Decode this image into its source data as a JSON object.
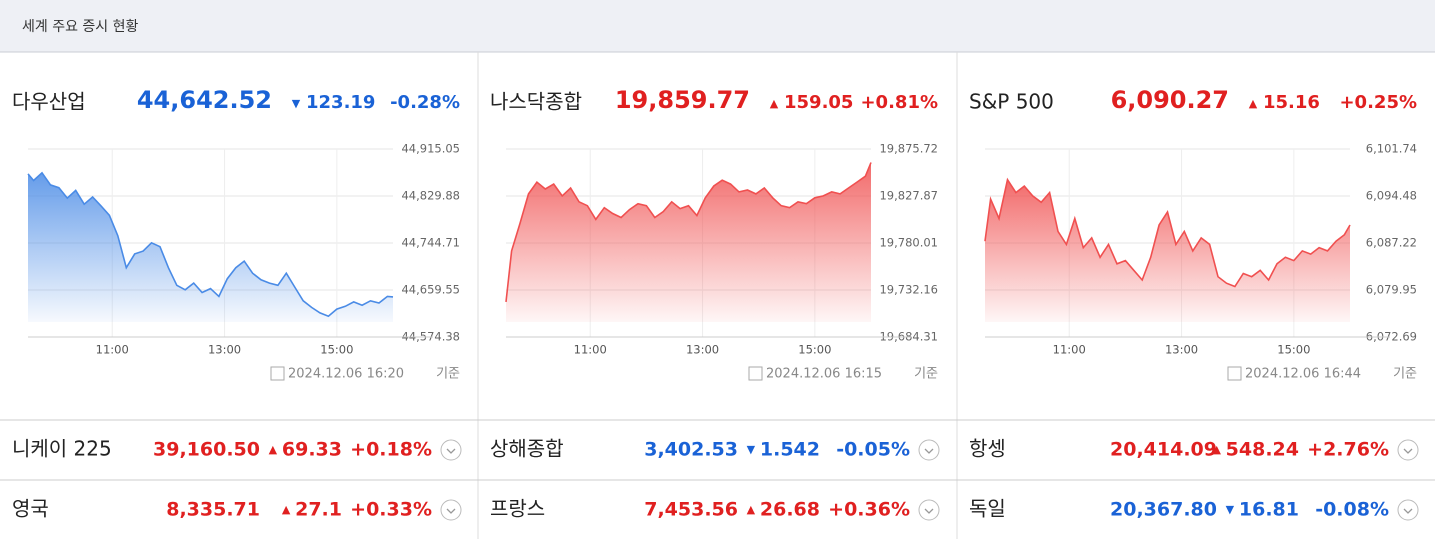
{
  "header": {
    "title": "세계 주요 증시 현황"
  },
  "chart_data": [
    {
      "type": "area",
      "name": "다우산업",
      "price": "44,642.52",
      "change": "123.19",
      "change_pct": "-0.28%",
      "direction": "down",
      "color": "#1a62d6",
      "fill": "#4a8be6",
      "timestamp": "2024.12.06 16:20",
      "timestamp_suffix": "기준",
      "x": [
        9.5,
        9.6,
        9.75,
        9.9,
        10.05,
        10.2,
        10.35,
        10.5,
        10.65,
        10.8,
        10.95,
        11.1,
        11.25,
        11.4,
        11.55,
        11.7,
        11.85,
        12.0,
        12.15,
        12.3,
        12.45,
        12.6,
        12.75,
        12.9,
        13.05,
        13.2,
        13.35,
        13.5,
        13.65,
        13.8,
        13.95,
        14.1,
        14.25,
        14.4,
        14.55,
        14.7,
        14.85,
        15.0,
        15.15,
        15.3,
        15.45,
        15.6,
        15.75,
        15.9,
        16.0
      ],
      "values": [
        44870,
        44858,
        44872,
        44850,
        44845,
        44826,
        44840,
        44815,
        44828,
        44812,
        44795,
        44758,
        44700,
        44725,
        44730,
        44745,
        44738,
        44700,
        44668,
        44660,
        44672,
        44655,
        44662,
        44648,
        44680,
        44700,
        44712,
        44690,
        44678,
        44672,
        44668,
        44690,
        44665,
        44640,
        44628,
        44618,
        44612,
        44625,
        44630,
        44638,
        44632,
        44640,
        44636,
        44648,
        44647
      ],
      "xlim": [
        9.5,
        16
      ],
      "ylim": [
        44574.38,
        44915.05
      ],
      "xticks": [
        {
          "value": 11,
          "label": "11:00"
        },
        {
          "value": 13,
          "label": "13:00"
        },
        {
          "value": 15,
          "label": "15:00"
        }
      ],
      "yticks": [
        {
          "value": 44574.38,
          "label": "44,574.38"
        },
        {
          "value": 44659.55,
          "label": "44,659.55"
        },
        {
          "value": 44744.71,
          "label": "44,744.71"
        },
        {
          "value": 44829.88,
          "label": "44,829.88"
        },
        {
          "value": 44915.05,
          "label": "44,915.05"
        }
      ]
    },
    {
      "type": "area",
      "name": "나스닥종합",
      "price": "19,859.77",
      "change": "159.05",
      "change_pct": "+0.81%",
      "direction": "up",
      "color": "#e02020",
      "fill": "#f05050",
      "timestamp": "2024.12.06 16:15",
      "timestamp_suffix": "기준",
      "x": [
        9.5,
        9.6,
        9.75,
        9.9,
        10.05,
        10.2,
        10.35,
        10.5,
        10.65,
        10.8,
        10.95,
        11.1,
        11.25,
        11.4,
        11.55,
        11.7,
        11.85,
        12.0,
        12.15,
        12.3,
        12.45,
        12.6,
        12.75,
        12.9,
        13.05,
        13.2,
        13.35,
        13.5,
        13.65,
        13.8,
        13.95,
        14.1,
        14.25,
        14.4,
        14.55,
        14.7,
        14.85,
        15.0,
        15.15,
        15.3,
        15.45,
        15.6,
        15.75,
        15.9,
        16.0
      ],
      "values": [
        19720,
        19772,
        19800,
        19830,
        19842,
        19835,
        19840,
        19828,
        19836,
        19822,
        19818,
        19804,
        19816,
        19810,
        19806,
        19814,
        19820,
        19818,
        19806,
        19812,
        19822,
        19815,
        19818,
        19808,
        19826,
        19838,
        19844,
        19840,
        19832,
        19834,
        19830,
        19836,
        19826,
        19818,
        19816,
        19822,
        19820,
        19826,
        19828,
        19832,
        19830,
        19836,
        19842,
        19848,
        19862
      ],
      "xlim": [
        9.5,
        16
      ],
      "ylim": [
        19684.31,
        19875.72
      ],
      "xticks": [
        {
          "value": 11,
          "label": "11:00"
        },
        {
          "value": 13,
          "label": "13:00"
        },
        {
          "value": 15,
          "label": "15:00"
        }
      ],
      "yticks": [
        {
          "value": 19684.31,
          "label": "19,684.31"
        },
        {
          "value": 19732.16,
          "label": "19,732.16"
        },
        {
          "value": 19780.01,
          "label": "19,780.01"
        },
        {
          "value": 19827.87,
          "label": "19,827.87"
        },
        {
          "value": 19875.72,
          "label": "19,875.72"
        }
      ]
    },
    {
      "type": "area",
      "name": "S&P 500",
      "price": "6,090.27",
      "change": "15.16",
      "change_pct": "+0.25%",
      "direction": "up",
      "color": "#e02020",
      "fill": "#f05050",
      "timestamp": "2024.12.06 16:44",
      "timestamp_suffix": "기준",
      "x": [
        9.5,
        9.6,
        9.75,
        9.9,
        10.05,
        10.2,
        10.35,
        10.5,
        10.65,
        10.8,
        10.95,
        11.1,
        11.25,
        11.4,
        11.55,
        11.7,
        11.85,
        12.0,
        12.15,
        12.3,
        12.45,
        12.6,
        12.75,
        12.9,
        13.05,
        13.2,
        13.35,
        13.5,
        13.65,
        13.8,
        13.95,
        14.1,
        14.25,
        14.4,
        14.55,
        14.7,
        14.85,
        15.0,
        15.15,
        15.3,
        15.45,
        15.6,
        15.75,
        15.9,
        16.0
      ],
      "values": [
        6087.5,
        6094,
        6091,
        6097,
        6095,
        6096,
        6094.5,
        6093.5,
        6095,
        6089,
        6087,
        6091,
        6086.5,
        6088,
        6085,
        6087,
        6084,
        6084.5,
        6083,
        6081.5,
        6085,
        6090,
        6092,
        6087,
        6089,
        6086,
        6088,
        6087,
        6082,
        6081,
        6080.5,
        6082.5,
        6082,
        6083,
        6081.5,
        6084,
        6085,
        6084.5,
        6086,
        6085.5,
        6086.5,
        6086,
        6087.5,
        6088.5,
        6090
      ],
      "xlim": [
        9.5,
        16
      ],
      "ylim": [
        6072.69,
        6101.74
      ],
      "xticks": [
        {
          "value": 11,
          "label": "11:00"
        },
        {
          "value": 13,
          "label": "13:00"
        },
        {
          "value": 15,
          "label": "15:00"
        }
      ],
      "yticks": [
        {
          "value": 6072.69,
          "label": "6,072.69"
        },
        {
          "value": 6079.95,
          "label": "6,079.95"
        },
        {
          "value": 6087.22,
          "label": "6,087.22"
        },
        {
          "value": 6094.48,
          "label": "6,094.48"
        },
        {
          "value": 6101.74,
          "label": "6,101.74"
        }
      ]
    }
  ],
  "markets": [
    {
      "name": "니케이 225",
      "price": "39,160.50",
      "change": "69.33",
      "change_pct": "+0.18%",
      "direction": "up",
      "color": "#e02020"
    },
    {
      "name": "상해종합",
      "price": "3,402.53",
      "change": "1.542",
      "change_pct": "-0.05%",
      "direction": "down",
      "color": "#1a62d6"
    },
    {
      "name": "항셍",
      "price": "20,414.09",
      "change": "548.24",
      "change_pct": "+2.76%",
      "direction": "up",
      "color": "#e02020"
    },
    {
      "name": "영국",
      "price": "8,335.71",
      "change": "27.1",
      "change_pct": "+0.33%",
      "direction": "up",
      "color": "#e02020"
    },
    {
      "name": "프랑스",
      "price": "7,453.56",
      "change": "26.68",
      "change_pct": "+0.36%",
      "direction": "up",
      "color": "#e02020"
    },
    {
      "name": "독일",
      "price": "20,367.80",
      "change": "16.81",
      "change_pct": "-0.08%",
      "direction": "down",
      "color": "#1a62d6"
    }
  ]
}
